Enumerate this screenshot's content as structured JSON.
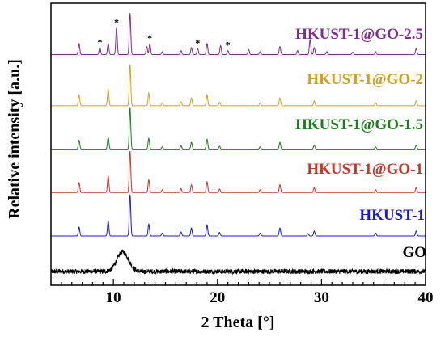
{
  "chart_data": {
    "type": "line",
    "xlabel": "2 Theta [°]",
    "ylabel": "Relative intensity [a.u.]",
    "xlim": [
      4,
      40
    ],
    "x_ticks": [
      10,
      20,
      30,
      40
    ],
    "x_tick_labels": [
      "10",
      "20",
      "30",
      "40"
    ],
    "grid": false,
    "legend": "inline labels above each curve (right side)",
    "stacked_offset": true,
    "series": [
      {
        "name": "GO",
        "color": "#000000",
        "baseline": 0.0,
        "noise": 0.12,
        "peaks": [
          {
            "x": 10.9,
            "height": 1.0,
            "width": 0.55
          }
        ]
      },
      {
        "name": "HKUST-1",
        "color": "#1a1acc",
        "baseline": 1.8,
        "peaks": [
          {
            "x": 6.7,
            "height": 0.45,
            "width": 0.07
          },
          {
            "x": 9.5,
            "height": 0.75,
            "width": 0.07
          },
          {
            "x": 11.6,
            "height": 2.1,
            "width": 0.07
          },
          {
            "x": 13.4,
            "height": 0.6,
            "width": 0.07
          },
          {
            "x": 14.7,
            "height": 0.15,
            "width": 0.07
          },
          {
            "x": 16.5,
            "height": 0.2,
            "width": 0.07
          },
          {
            "x": 17.5,
            "height": 0.4,
            "width": 0.07
          },
          {
            "x": 19.0,
            "height": 0.55,
            "width": 0.07
          },
          {
            "x": 20.2,
            "height": 0.18,
            "width": 0.07
          },
          {
            "x": 24.1,
            "height": 0.15,
            "width": 0.07
          },
          {
            "x": 26.0,
            "height": 0.4,
            "width": 0.07
          },
          {
            "x": 28.7,
            "height": 0.12,
            "width": 0.07
          },
          {
            "x": 29.3,
            "height": 0.25,
            "width": 0.07
          },
          {
            "x": 35.2,
            "height": 0.15,
            "width": 0.07
          },
          {
            "x": 39.1,
            "height": 0.25,
            "width": 0.07
          }
        ]
      },
      {
        "name": "HKUST-1@GO-1",
        "color": "#c0392b",
        "baseline": 4.0,
        "peaks": [
          {
            "x": 6.7,
            "height": 0.5,
            "width": 0.07
          },
          {
            "x": 9.5,
            "height": 0.85,
            "width": 0.07
          },
          {
            "x": 11.6,
            "height": 2.1,
            "width": 0.07
          },
          {
            "x": 13.4,
            "height": 0.65,
            "width": 0.07
          },
          {
            "x": 14.7,
            "height": 0.15,
            "width": 0.07
          },
          {
            "x": 16.5,
            "height": 0.2,
            "width": 0.07
          },
          {
            "x": 17.5,
            "height": 0.4,
            "width": 0.07
          },
          {
            "x": 19.0,
            "height": 0.55,
            "width": 0.07
          },
          {
            "x": 20.2,
            "height": 0.18,
            "width": 0.07
          },
          {
            "x": 24.1,
            "height": 0.15,
            "width": 0.07
          },
          {
            "x": 26.0,
            "height": 0.4,
            "width": 0.07
          },
          {
            "x": 29.3,
            "height": 0.25,
            "width": 0.07
          },
          {
            "x": 35.2,
            "height": 0.15,
            "width": 0.07
          },
          {
            "x": 39.1,
            "height": 0.25,
            "width": 0.07
          }
        ]
      },
      {
        "name": "HKUST-1@GO-1.5",
        "color": "#1e7b1e",
        "baseline": 6.2,
        "peaks": [
          {
            "x": 6.7,
            "height": 0.45,
            "width": 0.07
          },
          {
            "x": 9.5,
            "height": 0.6,
            "width": 0.07
          },
          {
            "x": 11.6,
            "height": 2.1,
            "width": 0.07
          },
          {
            "x": 13.4,
            "height": 0.55,
            "width": 0.07
          },
          {
            "x": 14.7,
            "height": 0.12,
            "width": 0.07
          },
          {
            "x": 16.5,
            "height": 0.18,
            "width": 0.07
          },
          {
            "x": 17.5,
            "height": 0.35,
            "width": 0.07
          },
          {
            "x": 19.0,
            "height": 0.5,
            "width": 0.07
          },
          {
            "x": 20.2,
            "height": 0.15,
            "width": 0.07
          },
          {
            "x": 24.1,
            "height": 0.12,
            "width": 0.07
          },
          {
            "x": 26.0,
            "height": 0.35,
            "width": 0.07
          },
          {
            "x": 29.3,
            "height": 0.2,
            "width": 0.07
          },
          {
            "x": 35.2,
            "height": 0.12,
            "width": 0.07
          },
          {
            "x": 39.1,
            "height": 0.2,
            "width": 0.07
          }
        ]
      },
      {
        "name": "HKUST-1@GO-2",
        "color": "#d4a017",
        "baseline": 8.4,
        "peaks": [
          {
            "x": 6.7,
            "height": 0.55,
            "width": 0.07
          },
          {
            "x": 9.5,
            "height": 0.85,
            "width": 0.07
          },
          {
            "x": 11.6,
            "height": 2.1,
            "width": 0.07
          },
          {
            "x": 13.4,
            "height": 0.65,
            "width": 0.07
          },
          {
            "x": 14.7,
            "height": 0.15,
            "width": 0.07
          },
          {
            "x": 16.5,
            "height": 0.2,
            "width": 0.07
          },
          {
            "x": 17.5,
            "height": 0.4,
            "width": 0.07
          },
          {
            "x": 19.0,
            "height": 0.55,
            "width": 0.07
          },
          {
            "x": 20.2,
            "height": 0.18,
            "width": 0.07
          },
          {
            "x": 24.1,
            "height": 0.15,
            "width": 0.07
          },
          {
            "x": 26.0,
            "height": 0.4,
            "width": 0.07
          },
          {
            "x": 29.3,
            "height": 0.25,
            "width": 0.07
          },
          {
            "x": 35.2,
            "height": 0.15,
            "width": 0.07
          },
          {
            "x": 39.1,
            "height": 0.25,
            "width": 0.07
          }
        ]
      },
      {
        "name": "HKUST-1@GO-2.5",
        "color": "#7b2d8e",
        "baseline": 11.0,
        "peaks": [
          {
            "x": 6.7,
            "height": 0.55,
            "width": 0.07
          },
          {
            "x": 8.7,
            "height": 0.35,
            "width": 0.07
          },
          {
            "x": 9.5,
            "height": 0.55,
            "width": 0.07
          },
          {
            "x": 10.3,
            "height": 1.35,
            "width": 0.07
          },
          {
            "x": 11.6,
            "height": 2.1,
            "width": 0.07
          },
          {
            "x": 13.2,
            "height": 0.4,
            "width": 0.07
          },
          {
            "x": 13.5,
            "height": 0.55,
            "width": 0.07
          },
          {
            "x": 14.7,
            "height": 0.15,
            "width": 0.07
          },
          {
            "x": 16.5,
            "height": 0.2,
            "width": 0.07
          },
          {
            "x": 17.5,
            "height": 0.35,
            "width": 0.07
          },
          {
            "x": 18.1,
            "height": 0.3,
            "width": 0.07
          },
          {
            "x": 19.0,
            "height": 0.55,
            "width": 0.07
          },
          {
            "x": 20.3,
            "height": 0.45,
            "width": 0.07
          },
          {
            "x": 21.0,
            "height": 0.2,
            "width": 0.07
          },
          {
            "x": 23.0,
            "height": 0.25,
            "width": 0.07
          },
          {
            "x": 24.1,
            "height": 0.15,
            "width": 0.07
          },
          {
            "x": 26.0,
            "height": 0.4,
            "width": 0.07
          },
          {
            "x": 27.7,
            "height": 0.2,
            "width": 0.07
          },
          {
            "x": 28.9,
            "height": 0.75,
            "width": 0.07
          },
          {
            "x": 29.3,
            "height": 0.35,
            "width": 0.07
          },
          {
            "x": 30.5,
            "height": 0.15,
            "width": 0.07
          },
          {
            "x": 33.0,
            "height": 0.12,
            "width": 0.07
          },
          {
            "x": 35.2,
            "height": 0.15,
            "width": 0.07
          },
          {
            "x": 39.1,
            "height": 0.3,
            "width": 0.07
          }
        ]
      }
    ],
    "annotations": [
      {
        "text": "*",
        "x": 8.7,
        "series": "HKUST-1@GO-2.5"
      },
      {
        "text": "*",
        "x": 10.3,
        "series": "HKUST-1@GO-2.5"
      },
      {
        "text": "*",
        "x": 13.5,
        "series": "HKUST-1@GO-2.5"
      },
      {
        "text": "*",
        "x": 18.1,
        "series": "HKUST-1@GO-2.5"
      },
      {
        "text": "*",
        "x": 21.0,
        "series": "HKUST-1@GO-2.5"
      }
    ]
  }
}
